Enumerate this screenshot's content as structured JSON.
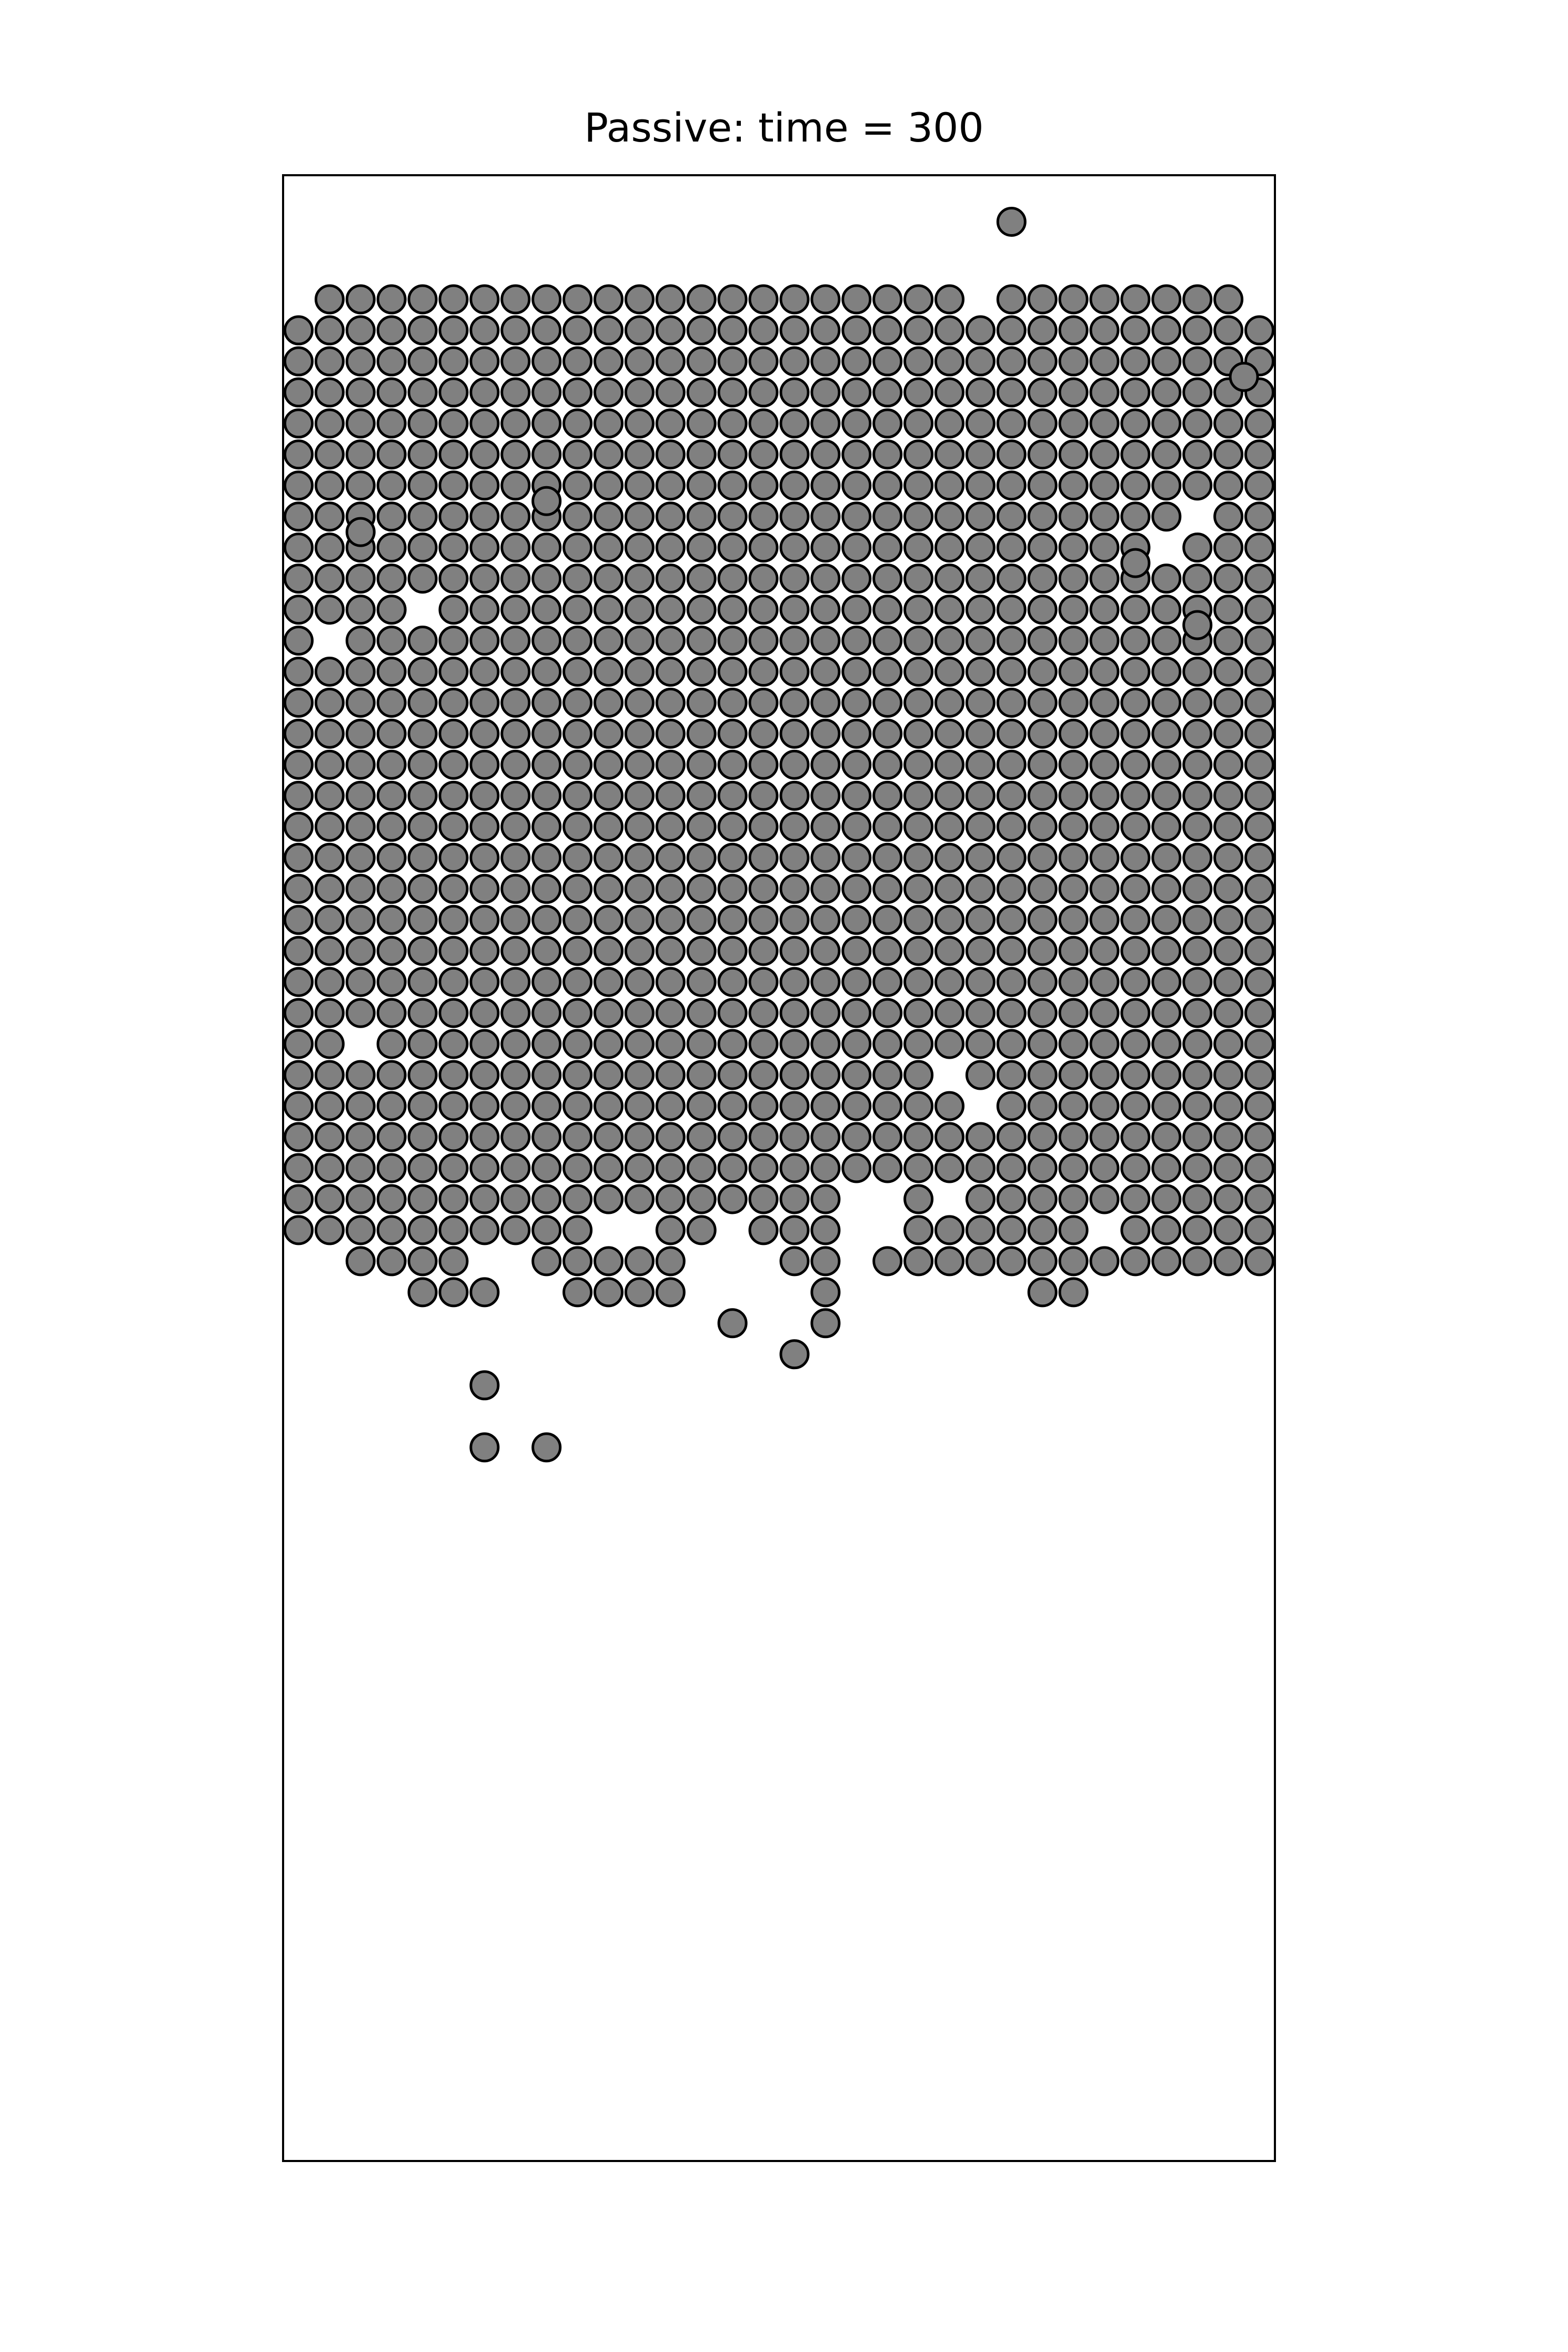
{
  "chart_data": {
    "type": "scatter",
    "title": "Passive: time = 300",
    "xlabel": "",
    "ylabel": "",
    "axis_ticks": "none",
    "grid": false,
    "xlim": [
      0,
      32
    ],
    "ylim": [
      0,
      64
    ],
    "marker_fill": "#808080",
    "marker_edge": "#000000",
    "full_rows": [
      {
        "y": 60.0,
        "x_from": 0.5,
        "x_to": 31.5,
        "missing": [
          0.5,
          22.5,
          31.5
        ]
      },
      {
        "y": 59.0,
        "x_from": 0.5,
        "x_to": 31.5,
        "missing": []
      },
      {
        "y": 58.0,
        "x_from": 0.5,
        "x_to": 31.5,
        "missing": []
      },
      {
        "y": 57.0,
        "x_from": 0.5,
        "x_to": 31.5,
        "missing": []
      },
      {
        "y": 56.0,
        "x_from": 0.5,
        "x_to": 31.5,
        "missing": []
      },
      {
        "y": 55.0,
        "x_from": 0.5,
        "x_to": 31.5,
        "missing": []
      },
      {
        "y": 54.0,
        "x_from": 0.5,
        "x_to": 31.5,
        "missing": []
      },
      {
        "y": 53.0,
        "x_from": 0.5,
        "x_to": 31.5,
        "missing": [
          29.5
        ]
      },
      {
        "y": 52.0,
        "x_from": 0.5,
        "x_to": 31.5,
        "missing": [
          28.5
        ]
      },
      {
        "y": 51.0,
        "x_from": 0.5,
        "x_to": 31.5,
        "missing": []
      },
      {
        "y": 50.0,
        "x_from": 0.5,
        "x_to": 31.5,
        "missing": [
          4.5
        ]
      },
      {
        "y": 49.0,
        "x_from": 0.5,
        "x_to": 31.5,
        "missing": [
          1.5
        ]
      },
      {
        "y": 48.0,
        "x_from": 0.5,
        "x_to": 31.5,
        "missing": []
      },
      {
        "y": 47.0,
        "x_from": 0.5,
        "x_to": 31.5,
        "missing": []
      },
      {
        "y": 46.0,
        "x_from": 0.5,
        "x_to": 31.5,
        "missing": []
      },
      {
        "y": 45.0,
        "x_from": 0.5,
        "x_to": 31.5,
        "missing": []
      },
      {
        "y": 44.0,
        "x_from": 0.5,
        "x_to": 31.5,
        "missing": []
      },
      {
        "y": 43.0,
        "x_from": 0.5,
        "x_to": 31.5,
        "missing": []
      },
      {
        "y": 42.0,
        "x_from": 0.5,
        "x_to": 31.5,
        "missing": []
      },
      {
        "y": 41.0,
        "x_from": 0.5,
        "x_to": 31.5,
        "missing": []
      },
      {
        "y": 40.0,
        "x_from": 0.5,
        "x_to": 31.5,
        "missing": []
      },
      {
        "y": 39.0,
        "x_from": 0.5,
        "x_to": 31.5,
        "missing": []
      },
      {
        "y": 38.0,
        "x_from": 0.5,
        "x_to": 31.5,
        "missing": []
      },
      {
        "y": 37.0,
        "x_from": 0.5,
        "x_to": 31.5,
        "missing": []
      },
      {
        "y": 36.0,
        "x_from": 0.5,
        "x_to": 31.5,
        "missing": [
          2.5
        ]
      },
      {
        "y": 35.0,
        "x_from": 0.5,
        "x_to": 31.5,
        "missing": [
          21.5
        ]
      },
      {
        "y": 34.0,
        "x_from": 0.5,
        "x_to": 31.5,
        "missing": [
          22.5
        ]
      },
      {
        "y": 33.0,
        "x_from": 0.5,
        "x_to": 31.5,
        "missing": []
      },
      {
        "y": 32.0,
        "x_from": 0.5,
        "x_to": 31.5,
        "missing": []
      },
      {
        "y": 31.0,
        "x_from": 0.5,
        "x_to": 31.5,
        "missing": [
          18.5,
          19.5,
          21.5
        ]
      },
      {
        "y": 30.0,
        "x_from": 0.5,
        "x_to": 31.5,
        "missing": [
          10.5,
          11.5,
          14.5,
          18.5,
          19.5,
          26.5
        ]
      }
    ],
    "extra_points": [
      {
        "x": 23.5,
        "y": 62.5
      },
      {
        "x": 31.0,
        "y": 57.5
      },
      {
        "x": 8.5,
        "y": 53.5
      },
      {
        "x": 27.5,
        "y": 51.5
      },
      {
        "x": 2.5,
        "y": 52.5
      },
      {
        "x": 29.5,
        "y": 49.5
      },
      {
        "x": 2.5,
        "y": 29.0
      },
      {
        "x": 3.5,
        "y": 29.0
      },
      {
        "x": 4.5,
        "y": 29.0
      },
      {
        "x": 5.5,
        "y": 29.0
      },
      {
        "x": 8.5,
        "y": 29.0
      },
      {
        "x": 9.5,
        "y": 29.0
      },
      {
        "x": 10.5,
        "y": 29.0
      },
      {
        "x": 11.5,
        "y": 29.0
      },
      {
        "x": 12.5,
        "y": 29.0
      },
      {
        "x": 16.5,
        "y": 29.0
      },
      {
        "x": 17.5,
        "y": 29.0
      },
      {
        "x": 19.5,
        "y": 29.0
      },
      {
        "x": 20.5,
        "y": 29.0
      },
      {
        "x": 21.5,
        "y": 29.0
      },
      {
        "x": 22.5,
        "y": 29.0
      },
      {
        "x": 23.5,
        "y": 29.0
      },
      {
        "x": 24.5,
        "y": 29.0
      },
      {
        "x": 25.5,
        "y": 29.0
      },
      {
        "x": 26.5,
        "y": 29.0
      },
      {
        "x": 27.5,
        "y": 29.0
      },
      {
        "x": 28.5,
        "y": 29.0
      },
      {
        "x": 29.5,
        "y": 29.0
      },
      {
        "x": 30.5,
        "y": 29.0
      },
      {
        "x": 31.5,
        "y": 29.0
      },
      {
        "x": 4.5,
        "y": 28.0
      },
      {
        "x": 5.5,
        "y": 28.0
      },
      {
        "x": 6.5,
        "y": 28.0
      },
      {
        "x": 9.5,
        "y": 28.0
      },
      {
        "x": 10.5,
        "y": 28.0
      },
      {
        "x": 11.5,
        "y": 28.0
      },
      {
        "x": 12.5,
        "y": 28.0
      },
      {
        "x": 17.5,
        "y": 28.0
      },
      {
        "x": 24.5,
        "y": 28.0
      },
      {
        "x": 25.5,
        "y": 28.0
      },
      {
        "x": 14.5,
        "y": 27.0
      },
      {
        "x": 17.5,
        "y": 27.0
      },
      {
        "x": 16.5,
        "y": 26.0
      },
      {
        "x": 6.5,
        "y": 25.0
      },
      {
        "x": 6.5,
        "y": 23.0
      },
      {
        "x": 8.5,
        "y": 23.0
      }
    ]
  }
}
